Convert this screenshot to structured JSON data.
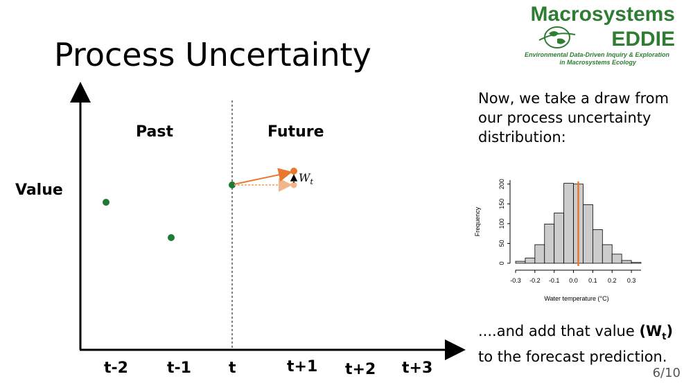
{
  "slide": {
    "title": "Process Uncertainty",
    "page_number": "6/10"
  },
  "logo": {
    "line1": "Macrosystems",
    "line2": "EDDIE",
    "tagline1": "Environmental Data-Driven Inquiry & Exploration",
    "tagline2": "in Macrosystems Ecology"
  },
  "diagram": {
    "y_label": "Value",
    "past_label": "Past",
    "future_label": "Future",
    "w_label": "W",
    "w_sub": "t",
    "x_ticks": [
      "t-2",
      "t-1",
      "t",
      "t+1",
      "t+2",
      "t+3"
    ],
    "colors": {
      "observed": "#1e7b34",
      "forecast": "#e8782d",
      "forecast_light": "#f2b48a"
    }
  },
  "explanation": {
    "intro": "Now, we take a draw from our process uncertainty distribution:",
    "conclusion_pre": "....and add that value ",
    "conclusion_w": "(W",
    "conclusion_sub": "t",
    "conclusion_close": ")",
    "conclusion_post": " to the forecast prediction."
  },
  "chart_data": {
    "type": "bar",
    "xlabel": "Water temperature (°C)",
    "ylabel": "Frequency",
    "x_ticks": [
      "-0.3",
      "-0.2",
      "-0.1",
      "0.0",
      "0.1",
      "0.2",
      "0.3"
    ],
    "y_ticks": [
      "0",
      "50",
      "100",
      "150",
      "200"
    ],
    "bin_edges": [
      -0.3,
      -0.25,
      -0.2,
      -0.15,
      -0.1,
      -0.05,
      0.0,
      0.05,
      0.1,
      0.15,
      0.2,
      0.25,
      0.3,
      0.35
    ],
    "values": [
      5,
      13,
      47,
      99,
      127,
      202,
      200,
      148,
      85,
      47,
      23,
      7,
      2
    ],
    "ylim": [
      0,
      210
    ],
    "xlim": [
      -0.3,
      0.35
    ],
    "draw_value": 0.025,
    "draw_color": "#e8782d",
    "bar_color": "#cccccc"
  }
}
